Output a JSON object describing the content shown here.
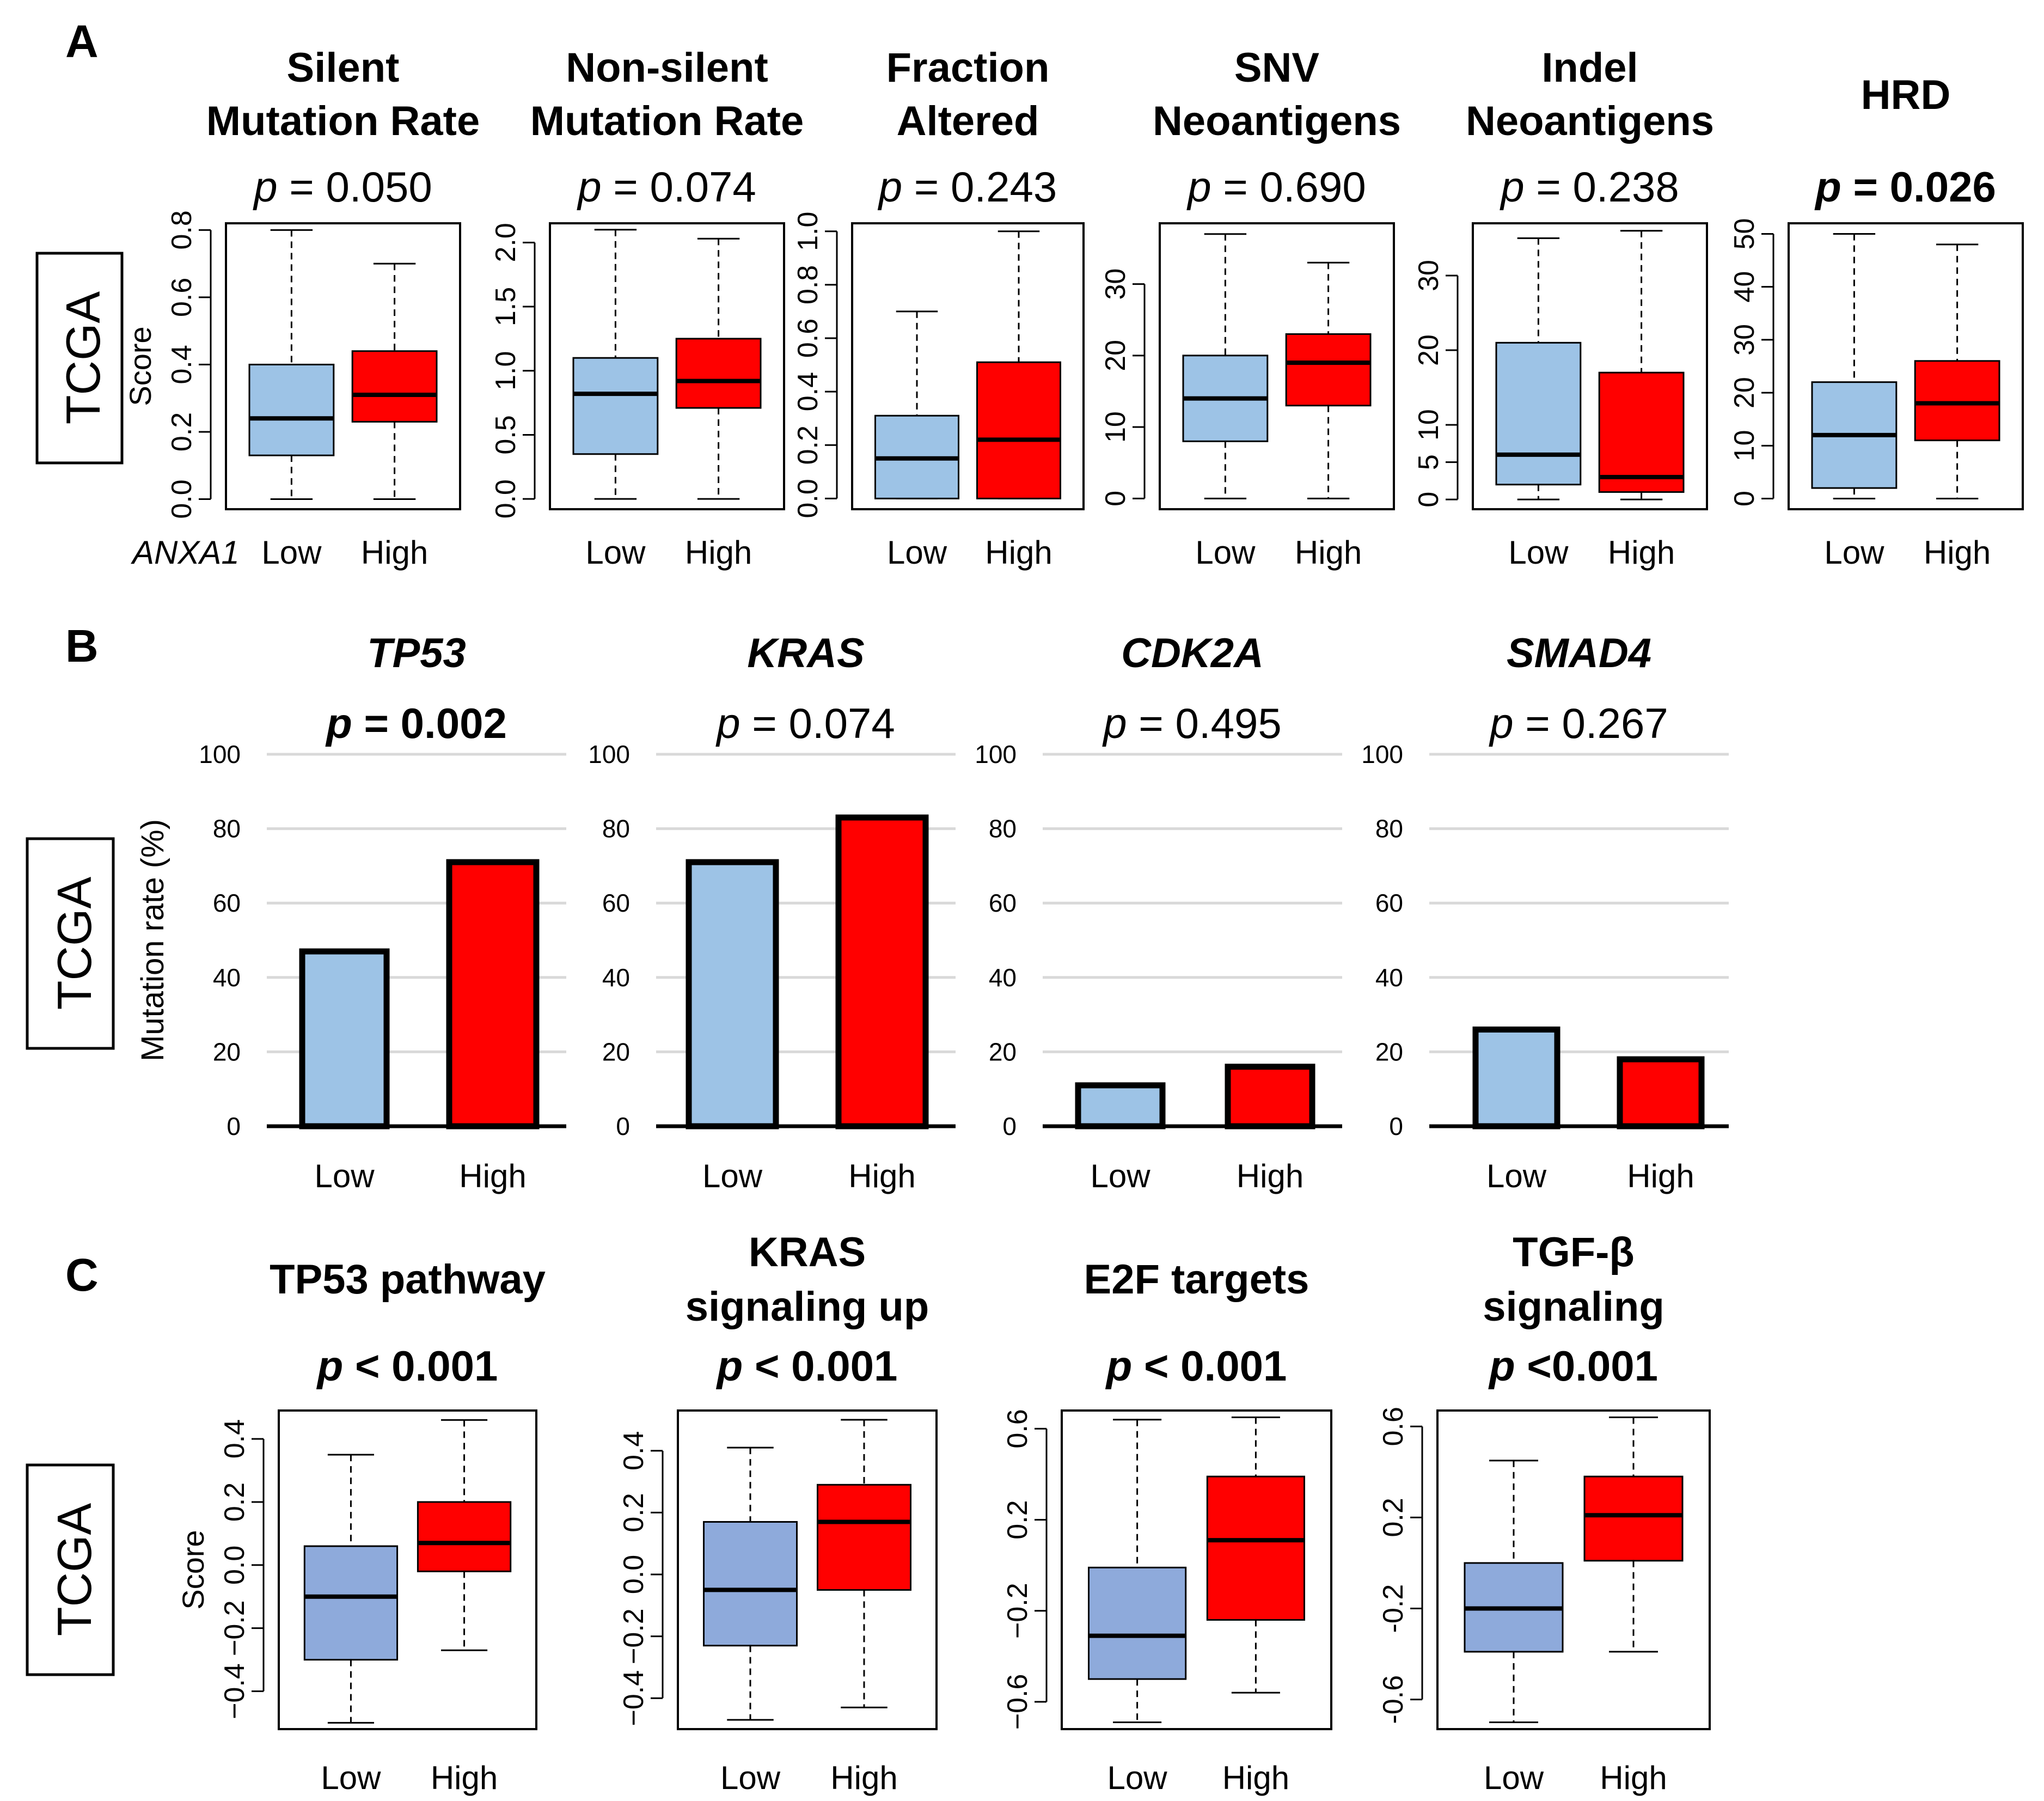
{
  "figure": {
    "panel_letters": [
      "A",
      "B",
      "C"
    ],
    "cohort_label": "TCGA",
    "gene_label": "ANXA1",
    "p_prefix": "p",
    "colors": {
      "low_light": "#9dc3e6",
      "low_c": "#8eaadb",
      "high": "#ff0000",
      "grid": "#d9d9d9"
    }
  },
  "chart_data": [
    {
      "type": "boxplot",
      "panel": "A",
      "title_lines": [
        "Silent",
        "Mutation Rate"
      ],
      "p_text": "= 0.050",
      "p_bold": false,
      "ylabel": "Score",
      "ylim": [
        -0.03,
        0.82
      ],
      "yticks": [
        "0.0",
        "0.2",
        "0.4",
        "0.6",
        "0.8"
      ],
      "ytick_values": [
        0,
        0.2,
        0.4,
        0.6,
        0.8
      ],
      "categories": [
        "Low",
        "High"
      ],
      "boxes": [
        {
          "name": "Low",
          "min": 0.0,
          "q1": 0.13,
          "median": 0.24,
          "q3": 0.4,
          "max": 0.8
        },
        {
          "name": "High",
          "min": 0.0,
          "q1": 0.23,
          "median": 0.31,
          "q3": 0.44,
          "max": 0.7
        }
      ]
    },
    {
      "type": "boxplot",
      "panel": "A",
      "title_lines": [
        "Non-silent",
        "Mutation Rate"
      ],
      "p_text": "= 0.074",
      "p_bold": false,
      "ylabel": "",
      "ylim": [
        -0.08,
        2.15
      ],
      "yticks": [
        "0.0",
        "0.5",
        "1.0",
        "1.5",
        "2.0"
      ],
      "ytick_values": [
        0,
        0.5,
        1.0,
        1.5,
        2.0
      ],
      "categories": [
        "Low",
        "High"
      ],
      "boxes": [
        {
          "name": "Low",
          "min": 0.0,
          "q1": 0.35,
          "median": 0.82,
          "q3": 1.1,
          "max": 2.1
        },
        {
          "name": "High",
          "min": 0.0,
          "q1": 0.71,
          "median": 0.92,
          "q3": 1.25,
          "max": 2.03
        }
      ]
    },
    {
      "type": "boxplot",
      "panel": "A",
      "title_lines": [
        "Fraction",
        "Altered"
      ],
      "p_text": "= 0.243",
      "p_bold": false,
      "ylabel": "",
      "ylim": [
        -0.04,
        1.03
      ],
      "yticks": [
        "0.0",
        "0.2",
        "0.4",
        "0.6",
        "0.8",
        "1.0"
      ],
      "ytick_values": [
        0,
        0.2,
        0.4,
        0.6,
        0.8,
        1.0
      ],
      "categories": [
        "Low",
        "High"
      ],
      "boxes": [
        {
          "name": "Low",
          "min": 0.0,
          "q1": 0.0,
          "median": 0.15,
          "q3": 0.31,
          "max": 0.7
        },
        {
          "name": "High",
          "min": 0.0,
          "q1": 0.0,
          "median": 0.22,
          "q3": 0.51,
          "max": 1.0
        }
      ]
    },
    {
      "type": "boxplot",
      "panel": "A",
      "title_lines": [
        "SNV",
        "Neoantigens"
      ],
      "p_text": "= 0.690",
      "p_bold": false,
      "ylabel": "",
      "ylim": [
        -1.5,
        38.5
      ],
      "yticks": [
        "0",
        "10",
        "20",
        "30"
      ],
      "ytick_values": [
        0,
        10,
        20,
        30
      ],
      "categories": [
        "Low",
        "High"
      ],
      "boxes": [
        {
          "name": "Low",
          "min": 0,
          "q1": 8,
          "median": 14,
          "q3": 20,
          "max": 37
        },
        {
          "name": "High",
          "min": 0,
          "q1": 13,
          "median": 19,
          "q3": 23,
          "max": 33
        }
      ]
    },
    {
      "type": "boxplot",
      "panel": "A",
      "title_lines": [
        "Indel",
        "Neoantigens"
      ],
      "p_text": "= 0.238",
      "p_bold": false,
      "ylabel": "",
      "ylim": [
        -1.3,
        37
      ],
      "yticks": [
        "0",
        "5",
        "10",
        "20",
        "30"
      ],
      "ytick_values": [
        0,
        5,
        10,
        20,
        30
      ],
      "categories": [
        "Low",
        "High"
      ],
      "boxes": [
        {
          "name": "Low",
          "min": 0,
          "q1": 2,
          "median": 6,
          "q3": 21,
          "max": 35
        },
        {
          "name": "High",
          "min": 0,
          "q1": 1,
          "median": 3,
          "q3": 17,
          "max": 36
        }
      ]
    },
    {
      "type": "boxplot",
      "panel": "A",
      "title_lines": [
        "HRD"
      ],
      "p_text": "= 0.026",
      "p_bold": true,
      "ylabel": "",
      "ylim": [
        -2,
        52
      ],
      "yticks": [
        "0",
        "10",
        "20",
        "30",
        "40",
        "50"
      ],
      "ytick_values": [
        0,
        10,
        20,
        30,
        40,
        50
      ],
      "categories": [
        "Low",
        "High"
      ],
      "boxes": [
        {
          "name": "Low",
          "min": 0,
          "q1": 2,
          "median": 12,
          "q3": 22,
          "max": 50
        },
        {
          "name": "High",
          "min": 0,
          "q1": 11,
          "median": 18,
          "q3": 26,
          "max": 48
        }
      ]
    },
    {
      "type": "bar",
      "panel": "B",
      "title": "TP53",
      "p_text": "= 0.002",
      "p_bold": true,
      "ylabel": "Mutation rate (%)",
      "ylim": [
        0,
        100
      ],
      "yticks": [
        "0",
        "20",
        "40",
        "60",
        "80",
        "100"
      ],
      "ytick_values": [
        0,
        20,
        40,
        60,
        80,
        100
      ],
      "categories": [
        "Low",
        "High"
      ],
      "values": [
        47,
        71
      ]
    },
    {
      "type": "bar",
      "panel": "B",
      "title": "KRAS",
      "p_text": "= 0.074",
      "p_bold": false,
      "ylabel": "",
      "ylim": [
        0,
        100
      ],
      "yticks": [
        "0",
        "20",
        "40",
        "60",
        "80",
        "100"
      ],
      "ytick_values": [
        0,
        20,
        40,
        60,
        80,
        100
      ],
      "categories": [
        "Low",
        "High"
      ],
      "values": [
        71,
        83
      ]
    },
    {
      "type": "bar",
      "panel": "B",
      "title": "CDK2A",
      "p_text": "= 0.495",
      "p_bold": false,
      "ylabel": "",
      "ylim": [
        0,
        100
      ],
      "yticks": [
        "0",
        "20",
        "40",
        "60",
        "80",
        "100"
      ],
      "ytick_values": [
        0,
        20,
        40,
        60,
        80,
        100
      ],
      "categories": [
        "Low",
        "High"
      ],
      "values": [
        11,
        16
      ]
    },
    {
      "type": "bar",
      "panel": "B",
      "title": "SMAD4",
      "p_text": "= 0.267",
      "p_bold": false,
      "ylabel": "",
      "ylim": [
        0,
        100
      ],
      "yticks": [
        "0",
        "20",
        "40",
        "60",
        "80",
        "100"
      ],
      "ytick_values": [
        0,
        20,
        40,
        60,
        80,
        100
      ],
      "categories": [
        "Low",
        "High"
      ],
      "values": [
        26,
        18
      ]
    },
    {
      "type": "boxplot",
      "panel": "C",
      "title_lines": [
        "TP53 pathway"
      ],
      "p_text": "< 0.001",
      "p_bold": true,
      "ylabel": "Score",
      "ylim": [
        -0.52,
        0.49
      ],
      "yticks": [
        "−0.4",
        "−0.2",
        "0.0",
        "0.2",
        "0.4"
      ],
      "ytick_values": [
        -0.4,
        -0.2,
        0.0,
        0.2,
        0.4
      ],
      "categories": [
        "Low",
        "High"
      ],
      "boxes": [
        {
          "name": "Low",
          "min": -0.5,
          "q1": -0.3,
          "median": -0.1,
          "q3": 0.06,
          "max": 0.35
        },
        {
          "name": "High",
          "min": -0.27,
          "q1": -0.02,
          "median": 0.07,
          "q3": 0.2,
          "max": 0.46
        }
      ]
    },
    {
      "type": "boxplot",
      "panel": "C",
      "title_lines": [
        "KRAS",
        "signaling up"
      ],
      "p_text": "< 0.001",
      "p_bold": true,
      "ylabel": "",
      "ylim": [
        -0.5,
        0.53
      ],
      "yticks": [
        "−0.4",
        "−0.2",
        "0.0",
        "0.2",
        "0.4"
      ],
      "ytick_values": [
        -0.4,
        -0.2,
        0.0,
        0.2,
        0.4
      ],
      "categories": [
        "Low",
        "High"
      ],
      "boxes": [
        {
          "name": "Low",
          "min": -0.47,
          "q1": -0.23,
          "median": -0.05,
          "q3": 0.17,
          "max": 0.41
        },
        {
          "name": "High",
          "min": -0.43,
          "q1": -0.05,
          "median": 0.17,
          "q3": 0.29,
          "max": 0.5
        }
      ]
    },
    {
      "type": "boxplot",
      "panel": "C",
      "title_lines": [
        "E2F targets"
      ],
      "p_text": "< 0.001",
      "p_bold": true,
      "ylabel": "",
      "ylim": [
        -0.72,
        0.68
      ],
      "yticks": [
        "−0.6",
        "−0.2",
        "0.2",
        "0.6"
      ],
      "ytick_values": [
        -0.6,
        -0.2,
        0.2,
        0.6
      ],
      "categories": [
        "Low",
        "High"
      ],
      "boxes": [
        {
          "name": "Low",
          "min": -0.69,
          "q1": -0.5,
          "median": -0.31,
          "q3": -0.01,
          "max": 0.64
        },
        {
          "name": "High",
          "min": -0.56,
          "q1": -0.24,
          "median": 0.11,
          "q3": 0.39,
          "max": 0.65
        }
      ]
    },
    {
      "type": "boxplot",
      "panel": "C",
      "title_lines": [
        "TGF-β",
        "signaling"
      ],
      "p_text": "<0.001",
      "p_bold": true,
      "ylabel": "",
      "ylim": [
        -0.73,
        0.67
      ],
      "yticks": [
        "-0.6",
        "-0.2",
        "0.2",
        "0.6"
      ],
      "ytick_values": [
        -0.6,
        -0.2,
        0.2,
        0.6
      ],
      "categories": [
        "Low",
        "High"
      ],
      "boxes": [
        {
          "name": "Low",
          "min": -0.7,
          "q1": -0.39,
          "median": -0.2,
          "q3": 0.0,
          "max": 0.45
        },
        {
          "name": "High",
          "min": -0.39,
          "q1": 0.01,
          "median": 0.21,
          "q3": 0.38,
          "max": 0.64
        }
      ]
    }
  ]
}
